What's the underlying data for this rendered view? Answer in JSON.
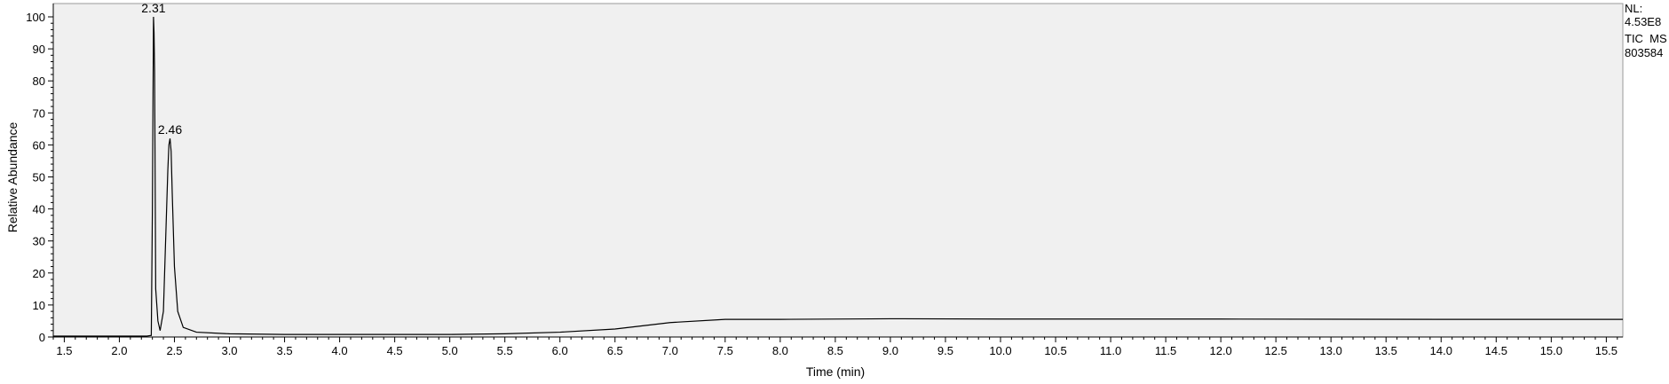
{
  "chart_data": {
    "type": "line",
    "title": "",
    "xlabel": "Time (min)",
    "ylabel": "Relative Abundance",
    "xlim": [
      1.4,
      15.65
    ],
    "ylim": [
      0,
      100
    ],
    "x_ticks": [
      "1.5",
      "2.0",
      "2.5",
      "3.0",
      "3.5",
      "4.0",
      "4.5",
      "5.0",
      "5.5",
      "6.0",
      "6.5",
      "7.0",
      "7.5",
      "8.0",
      "8.5",
      "9.0",
      "9.5",
      "10.0",
      "10.5",
      "11.0",
      "11.5",
      "12.0",
      "12.5",
      "13.0",
      "13.5",
      "14.0",
      "14.5",
      "15.0",
      "15.5"
    ],
    "y_ticks": [
      "0",
      "10",
      "20",
      "30",
      "40",
      "50",
      "60",
      "70",
      "80",
      "90",
      "100"
    ],
    "series": [
      {
        "name": "TIC MS 803584",
        "x": [
          1.4,
          2.25,
          2.29,
          2.3,
          2.31,
          2.315,
          2.32,
          2.325,
          2.33,
          2.35,
          2.37,
          2.4,
          2.42,
          2.44,
          2.45,
          2.46,
          2.47,
          2.48,
          2.5,
          2.53,
          2.58,
          2.7,
          3.0,
          3.5,
          4.0,
          5.0,
          5.5,
          6.0,
          6.5,
          7.0,
          7.5,
          8.0,
          9.0,
          10.0,
          12.0,
          14.0,
          15.65
        ],
        "y": [
          0.3,
          0.3,
          0.5,
          40,
          100,
          95,
          83,
          50,
          15,
          5,
          2,
          8,
          30,
          52,
          60,
          62,
          58,
          45,
          22,
          8,
          3,
          1.5,
          1,
          0.8,
          0.8,
          0.8,
          1,
          1.5,
          2.5,
          4.5,
          5.5,
          5.5,
          5.7,
          5.6,
          5.6,
          5.5,
          5.5
        ]
      }
    ],
    "peak_labels": [
      {
        "x": 2.31,
        "y": 100,
        "text": "2.31"
      },
      {
        "x": 2.46,
        "y": 62,
        "text": "2.46"
      }
    ],
    "grid": false
  },
  "info": {
    "nl_label": "NL:",
    "nl_value": "4.53E8",
    "trace_label": "TIC  MS",
    "sample_id": "803584"
  },
  "colors": {
    "plot_bg": "#f0f0f0",
    "trace": "#000000",
    "axis": "#000000"
  }
}
